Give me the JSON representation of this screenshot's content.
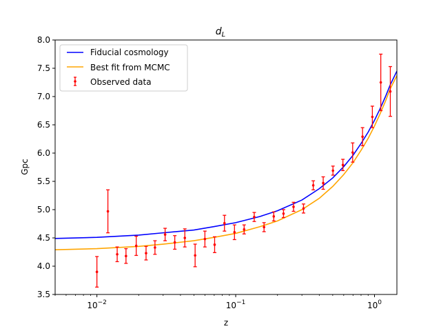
{
  "chart_data": {
    "type": "line",
    "title_main": "d",
    "title_sub": "L",
    "xlabel": "z",
    "ylabel": "Gpc",
    "xscale": "log",
    "xlim": [
      0.005,
      1.45
    ],
    "ylim": [
      3.5,
      8.0
    ],
    "x_ticks": [
      {
        "value": 0.01,
        "base": "10",
        "exp": "−2"
      },
      {
        "value": 0.1,
        "base": "10",
        "exp": "−1"
      },
      {
        "value": 1,
        "base": "10",
        "exp": "0"
      }
    ],
    "y_ticks": [
      {
        "value": 3.5,
        "label": "3.5"
      },
      {
        "value": 4.0,
        "label": "4.0"
      },
      {
        "value": 4.5,
        "label": "4.5"
      },
      {
        "value": 5.0,
        "label": "5.0"
      },
      {
        "value": 5.5,
        "label": "5.5"
      },
      {
        "value": 6.0,
        "label": "6.0"
      },
      {
        "value": 6.5,
        "label": "6.5"
      },
      {
        "value": 7.0,
        "label": "7.0"
      },
      {
        "value": 7.5,
        "label": "7.5"
      },
      {
        "value": 8.0,
        "label": "8.0"
      }
    ],
    "grid": false,
    "legend_position": "top-left",
    "series": [
      {
        "name": "Fiducial cosmology",
        "kind": "line",
        "color": "#0000ff",
        "x": [
          0.005,
          0.01,
          0.02,
          0.03,
          0.05,
          0.07,
          0.1,
          0.15,
          0.2,
          0.3,
          0.4,
          0.5,
          0.6,
          0.7,
          0.8,
          0.9,
          1.0,
          1.1,
          1.2,
          1.3,
          1.45
        ],
        "y": [
          4.49,
          4.51,
          4.55,
          4.59,
          4.64,
          4.7,
          4.77,
          4.88,
          4.98,
          5.17,
          5.37,
          5.56,
          5.76,
          5.96,
          6.17,
          6.37,
          6.58,
          6.79,
          7.0,
          7.21,
          7.45
        ]
      },
      {
        "name": "Best fit from MCMC",
        "kind": "line",
        "color": "#ffa500",
        "x": [
          0.005,
          0.01,
          0.02,
          0.03,
          0.05,
          0.07,
          0.1,
          0.15,
          0.2,
          0.3,
          0.4,
          0.5,
          0.6,
          0.7,
          0.8,
          0.9,
          1.0,
          1.1,
          1.2,
          1.3,
          1.45
        ],
        "y": [
          4.29,
          4.31,
          4.35,
          4.39,
          4.45,
          4.51,
          4.58,
          4.7,
          4.8,
          5.0,
          5.2,
          5.41,
          5.62,
          5.83,
          6.05,
          6.26,
          6.48,
          6.7,
          6.92,
          7.14,
          7.37
        ]
      },
      {
        "name": "Observed data",
        "kind": "errorbar",
        "color": "#ff0000",
        "x": [
          0.01,
          0.012,
          0.014,
          0.0162,
          0.0192,
          0.0226,
          0.0262,
          0.031,
          0.0364,
          0.043,
          0.051,
          0.06,
          0.0705,
          0.083,
          0.098,
          0.115,
          0.136,
          0.16,
          0.188,
          0.221,
          0.261,
          0.308,
          0.362,
          0.427,
          0.502,
          0.592,
          0.696,
          0.82,
          0.965,
          1.11,
          1.3
        ],
        "y": [
          3.9,
          4.97,
          4.21,
          4.18,
          4.36,
          4.23,
          4.33,
          4.56,
          4.42,
          4.5,
          4.19,
          4.48,
          4.38,
          4.76,
          4.6,
          4.65,
          4.87,
          4.69,
          4.88,
          4.93,
          5.05,
          5.02,
          5.43,
          5.47,
          5.69,
          5.79,
          6.01,
          6.29,
          6.64,
          7.25,
          7.09
        ],
        "err": [
          0.27,
          0.38,
          0.13,
          0.13,
          0.17,
          0.12,
          0.12,
          0.11,
          0.12,
          0.16,
          0.2,
          0.14,
          0.14,
          0.14,
          0.13,
          0.08,
          0.08,
          0.08,
          0.08,
          0.07,
          0.08,
          0.08,
          0.08,
          0.11,
          0.08,
          0.1,
          0.17,
          0.16,
          0.19,
          0.5,
          0.44
        ]
      }
    ]
  }
}
